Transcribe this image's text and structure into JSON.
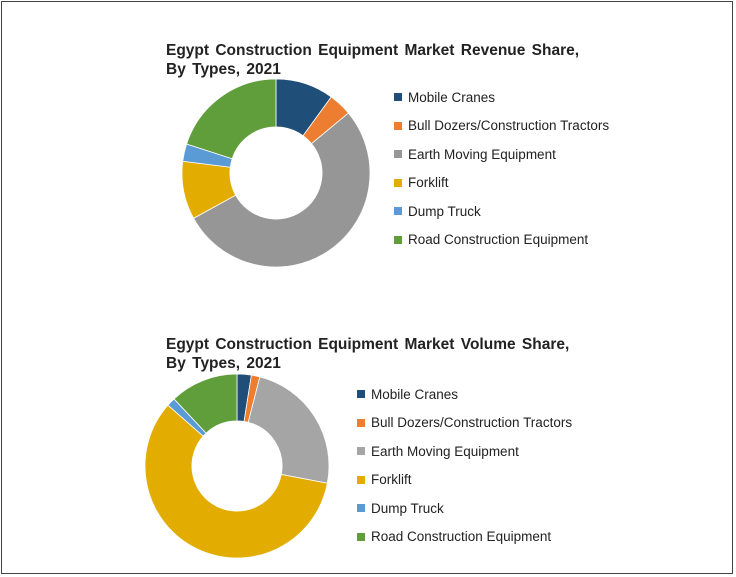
{
  "chart_data": [
    {
      "type": "pie",
      "subtype": "donut",
      "title": "Egypt Construction Equipment Market Revenue Share, By Types, 2021",
      "title_lines": [
        "Egypt Construction Equipment Market Revenue Share,",
        "By Types, 2021"
      ],
      "categories": [
        "Mobile Cranes",
        "Bull Dozers/Construction Tractors",
        "Earth Moving Equipment",
        "Forklift",
        "Dump Truck",
        "Road Construction Equipment"
      ],
      "values": [
        10,
        4,
        53,
        10,
        3,
        20
      ],
      "colors": [
        "#1f4e79",
        "#ed7d31",
        "#969696",
        "#e2ac00",
        "#5b9bd5",
        "#5f9e3b"
      ],
      "legend": "right"
    },
    {
      "type": "pie",
      "subtype": "donut",
      "title": "Egypt Construction Equipment Market Volume Share, By Types, 2021",
      "title_lines": [
        "Egypt Construction Equipment Market Volume Share,",
        "By Types, 2021"
      ],
      "categories": [
        "Mobile Cranes",
        "Bull Dozers/Construction Tractors",
        "Earth Moving Equipment",
        "Forklift",
        "Dump Truck",
        "Road Construction Equipment"
      ],
      "values": [
        2.5,
        1.5,
        24,
        58.5,
        1.5,
        12
      ],
      "colors": [
        "#1f4e79",
        "#ed7d31",
        "#a5a5a5",
        "#e2ac00",
        "#5b9bd5",
        "#5f9e3b"
      ],
      "legend": "right"
    }
  ]
}
